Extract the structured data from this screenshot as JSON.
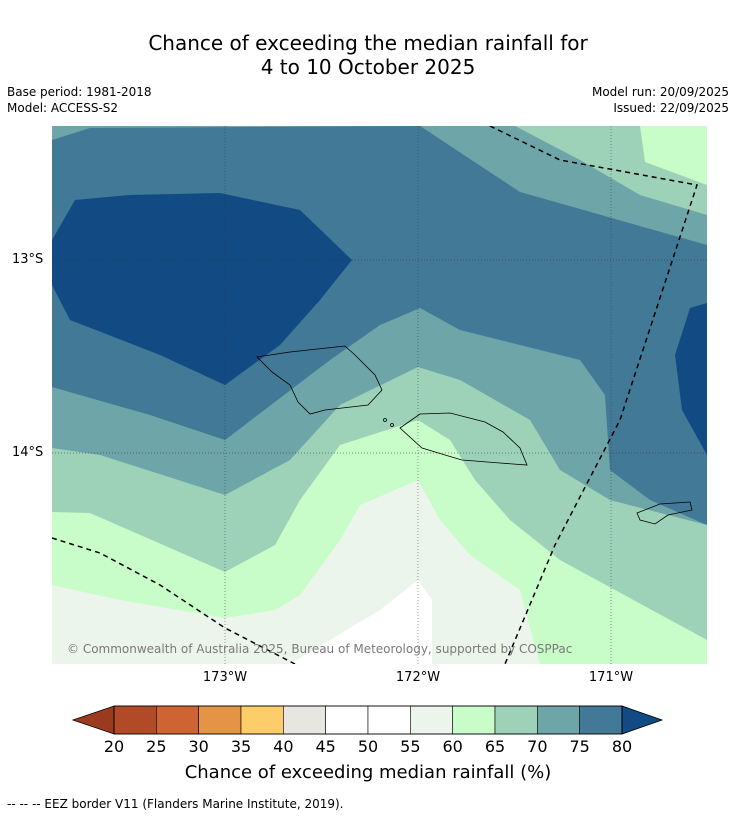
{
  "header": {
    "title_line1": "Chance of exceeding the median rainfall for",
    "title_line2": "4 to 10 October 2025",
    "base_period": "Base period: 1981-2018",
    "model": "Model: ACCESS-S2",
    "model_run": "Model run: 20/09/2025",
    "issued": "Issued: 22/09/2025"
  },
  "map": {
    "lat_labels": [
      "13°S",
      "14°S"
    ],
    "lon_labels": [
      "173°W",
      "172°W",
      "171°W"
    ],
    "copyright": "© Commonwealth of Australia 2025, Bureau of Meteorology, supported by COSPPac",
    "land_names": [
      "savaii-island",
      "upolu-island",
      "tutuila-island"
    ]
  },
  "colorbar": {
    "ticks": [
      "20",
      "25",
      "30",
      "35",
      "40",
      "45",
      "50",
      "55",
      "60",
      "65",
      "70",
      "75",
      "80"
    ],
    "colors": [
      "#9b3a1f",
      "#b14a26",
      "#cd6432",
      "#e39445",
      "#fdcd6a",
      "#e8e6e1",
      "#ffffff",
      "#ffffff",
      "#ebf5eb",
      "#c8fcc8",
      "#9dd2b9",
      "#6ea5a8",
      "#417996",
      "#124b83"
    ],
    "label": "Chance of exceeding median rainfall (%)"
  },
  "footer": {
    "eez_note": "--  --  -- EEZ border V11 (Flanders Marine Institute, 2019)."
  }
}
